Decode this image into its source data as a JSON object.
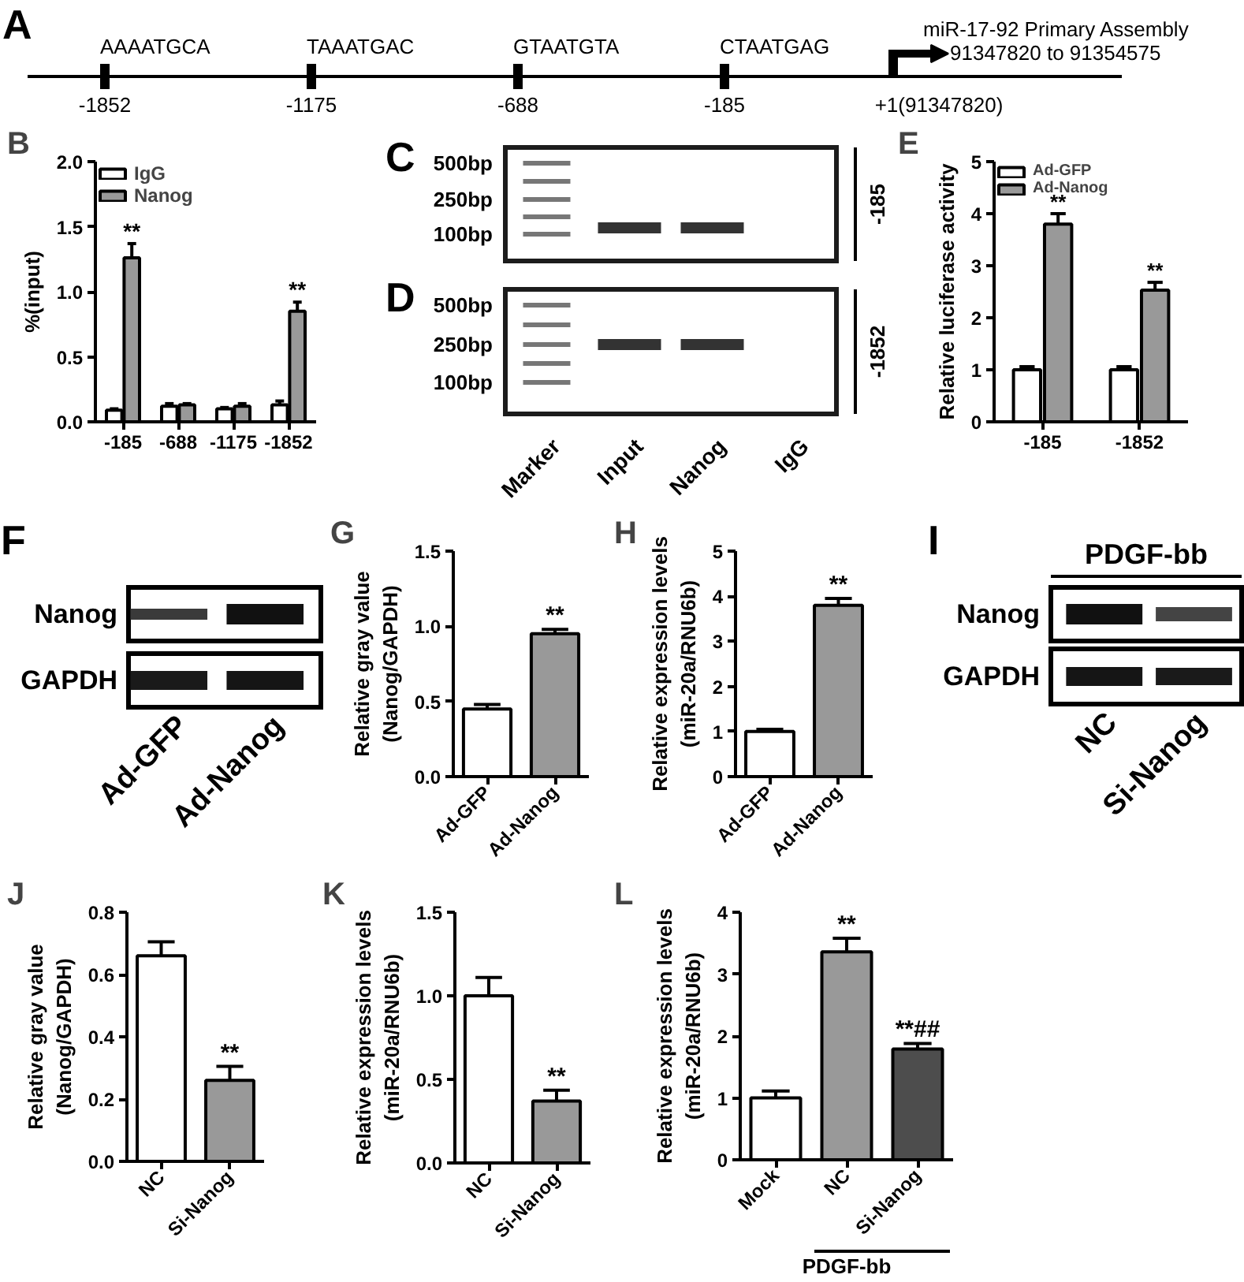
{
  "chart_data": [
    {
      "type": "other",
      "title": "A",
      "annotations": [
        "AAAATGCA",
        "TAAATGAC",
        "GTAATGTA",
        "CTAATGAG",
        "-1852",
        "-1175",
        "-688",
        "-185",
        "+1(91347820)",
        "miR-17-92 Primary Assembly",
        "91347820 to 91354575"
      ]
    },
    {
      "type": "bar",
      "title": "B",
      "ylabel": "%(input)",
      "categories": [
        "-185",
        "-688",
        "-1175",
        "-1852"
      ],
      "series": [
        {
          "name": "IgG",
          "color": "#ffffff",
          "values": [
            0.09,
            0.12,
            0.1,
            0.13
          ],
          "errors": [
            0.01,
            0.02,
            0.01,
            0.03
          ]
        },
        {
          "name": "Nanog",
          "color": "#999999",
          "values": [
            1.26,
            0.13,
            0.12,
            0.85
          ],
          "errors": [
            0.11,
            0.01,
            0.02,
            0.07
          ]
        }
      ],
      "ylim": [
        0,
        2
      ],
      "yticks": [
        {
          "value": 0,
          "label": "0.0"
        },
        0.5,
        {
          "value": 1,
          "label": "1.0"
        },
        1.5,
        {
          "value": 2,
          "label": "2.0"
        }
      ],
      "legend": "top left",
      "annotations": [
        {
          "text": "**",
          "x": "-185",
          "y": 1.37
        },
        {
          "text": "**",
          "x": "-1852",
          "y": 0.92
        }
      ]
    },
    {
      "type": "other",
      "title": "C",
      "annotations": [
        "500bp",
        "250bp",
        "100bp",
        "-185"
      ]
    },
    {
      "type": "other",
      "title": "D",
      "annotations": [
        "500bp",
        "250bp",
        "100bp",
        "-1852",
        "Marker",
        "Input",
        "Nanog",
        "IgG"
      ]
    },
    {
      "type": "bar",
      "title": "E",
      "ylabel": "Relative luciferase activity",
      "categories": [
        "-185",
        "-1852"
      ],
      "series": [
        {
          "name": "Ad-GFP",
          "color": "#ffffff",
          "values": [
            1.0,
            1.0
          ],
          "errors": [
            0.06,
            0.06
          ]
        },
        {
          "name": "Ad-Nanog",
          "color": "#999999",
          "values": [
            3.8,
            2.53
          ],
          "errors": [
            0.2,
            0.15
          ]
        }
      ],
      "ylim": [
        0,
        5
      ],
      "yticks": [
        0,
        1,
        2,
        3,
        4,
        5
      ],
      "legend": "top left",
      "annotations": [
        {
          "text": "**",
          "x": "-185",
          "y": 4.0
        },
        {
          "text": "**",
          "x": "-1852",
          "y": 2.53
        }
      ]
    },
    {
      "type": "other",
      "title": "F",
      "annotations": [
        "Nanog",
        "GAPDH",
        "Ad-GFP",
        "Ad-Nanog"
      ]
    },
    {
      "type": "bar",
      "title": "G",
      "ylabel": "Relative gray value\n(Nanog/GAPDH)",
      "categories": [
        "Ad-GFP",
        "Ad-Nanog"
      ],
      "values": [
        0.45,
        0.95
      ],
      "errors": [
        0.03,
        0.03
      ],
      "colors": [
        "#ffffff",
        "#999999"
      ],
      "ylim": [
        0,
        1.5
      ],
      "yticks": [
        {
          "value": 0,
          "label": "0.0"
        },
        0.5,
        {
          "value": 1,
          "label": "1.0"
        },
        1.5
      ],
      "annotations": [
        {
          "text": "**",
          "x": "Ad-Nanog",
          "y": 0.98
        }
      ]
    },
    {
      "type": "bar",
      "title": "H",
      "ylabel": "Relative expression levels\n(miR-20a/RNU6b)",
      "categories": [
        "Ad-GFP",
        "Ad-Nanog"
      ],
      "values": [
        1.0,
        3.8
      ],
      "errors": [
        0.05,
        0.15
      ],
      "colors": [
        "#ffffff",
        "#999999"
      ],
      "ylim": [
        0,
        5
      ],
      "yticks": [
        0,
        1,
        2,
        3,
        4,
        5
      ],
      "annotations": [
        {
          "text": "**",
          "x": "Ad-Nanog",
          "y": 3.95
        }
      ]
    },
    {
      "type": "other",
      "title": "I",
      "annotations": [
        "PDGF-bb",
        "Nanog",
        "GAPDH",
        "NC",
        "Si-Nanog"
      ]
    },
    {
      "type": "bar",
      "title": "J",
      "ylabel": "Relative gray value\n(Nanog/GAPDH)",
      "categories": [
        "NC",
        "Si-Nanog"
      ],
      "values": [
        0.66,
        0.26
      ],
      "errors": [
        0.045,
        0.045
      ],
      "colors": [
        "#ffffff",
        "#999999"
      ],
      "ylim": [
        0,
        0.8
      ],
      "yticks": [
        {
          "value": 0,
          "label": "0.0"
        },
        0.2,
        0.4,
        0.6,
        0.8
      ],
      "annotations": [
        {
          "text": "**",
          "x": "Si-Nanog",
          "y": 0.305
        }
      ]
    },
    {
      "type": "bar",
      "title": "K",
      "ylabel": "Relative expression levels\n(miR-20a/RNU6b)",
      "categories": [
        "NC",
        "Si-Nanog"
      ],
      "values": [
        1.0,
        0.37
      ],
      "errors": [
        0.11,
        0.065
      ],
      "colors": [
        "#ffffff",
        "#999999"
      ],
      "ylim": [
        0,
        1.5
      ],
      "yticks": [
        {
          "value": 0,
          "label": "0.0"
        },
        0.5,
        {
          "value": 1,
          "label": "1.0"
        },
        1.5
      ],
      "annotations": [
        {
          "text": "**",
          "x": "Si-Nanog",
          "y": 0.435
        }
      ]
    },
    {
      "type": "bar",
      "title": "L",
      "ylabel": "Relative expression levels\n(miR-20a/RNU6b)",
      "categories": [
        "Mock",
        "NC",
        "Si-Nanog"
      ],
      "values": [
        1.0,
        3.36,
        1.79
      ],
      "errors": [
        0.11,
        0.22,
        0.09
      ],
      "colors": [
        "#ffffff",
        "#999999",
        "#4d4d4d"
      ],
      "ylim": [
        0,
        4
      ],
      "yticks": [
        0,
        1,
        2,
        3,
        4
      ],
      "annotations": [
        {
          "text": "**",
          "x": "NC",
          "y": 3.58
        },
        {
          "text": "**##",
          "x": "Si-Nanog",
          "y": 1.88
        },
        "PDGF-bb"
      ]
    }
  ]
}
